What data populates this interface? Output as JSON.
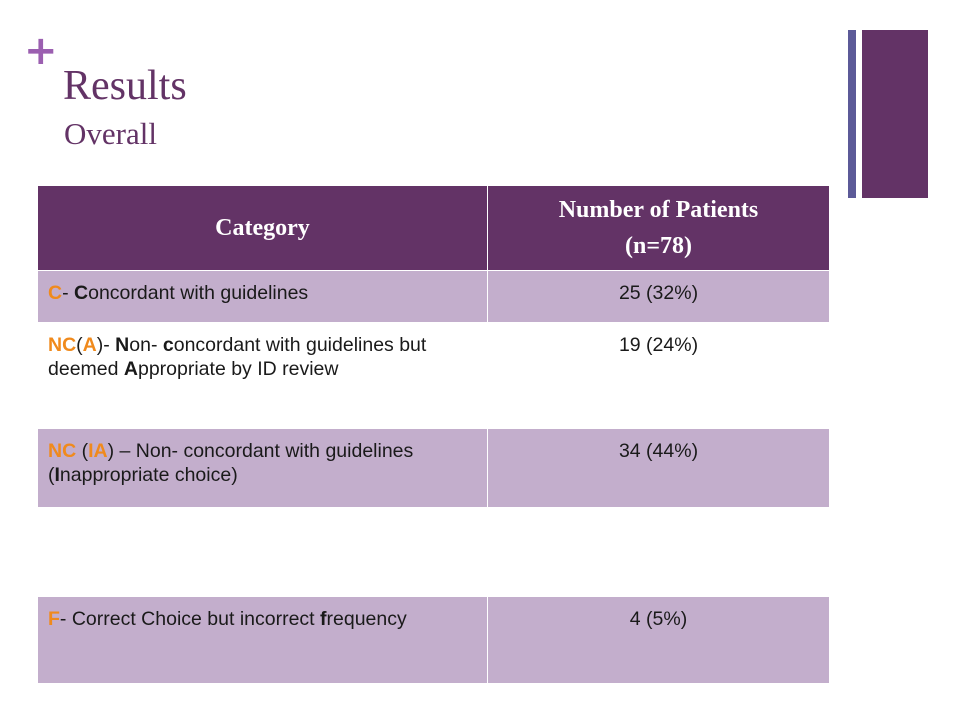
{
  "header": {
    "title": "Results",
    "subtitle": "Overall"
  },
  "table": {
    "columns": [
      "Category",
      "Number of Patients (n=78)"
    ],
    "rows": [
      [
        [
          "C",
          "- ",
          "C",
          "oncordant with guidelines"
        ],
        "25 (32%)"
      ],
      [
        [
          "NC",
          "(",
          "A",
          ")- ",
          "N",
          "on- ",
          "c",
          "oncordant with guidelines but deemed ",
          "A",
          "ppropriate by ID review"
        ],
        "19 (24%)"
      ],
      [
        [
          "NC",
          " (",
          "IA",
          ") – Non- concordant with guidelines (",
          "I",
          "nappropriate choice)"
        ],
        "34 (44%)"
      ],
      [
        [
          "F",
          "- Correct Choice but incorrect ",
          "f",
          "requency"
        ],
        "4 (5%)"
      ]
    ]
  }
}
